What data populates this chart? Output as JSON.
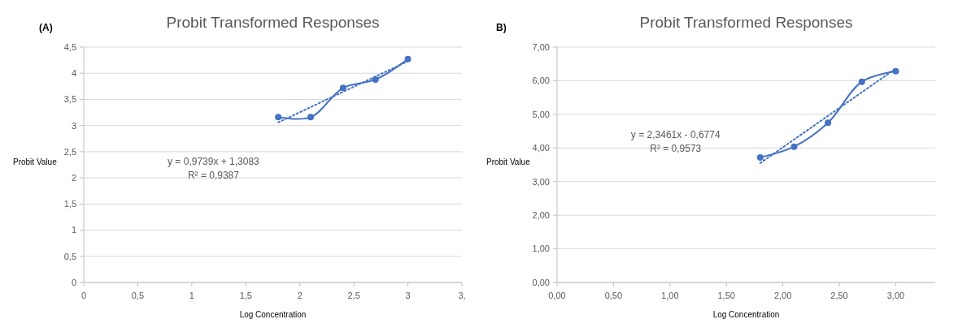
{
  "chart_data": [
    {
      "type": "line",
      "title": "Probit Transformed Responses",
      "xlabel": "Log Concentration",
      "ylabel": "Probit Value",
      "annotations": [
        "(A)",
        "y = 0,9739x + 1,3083",
        "R² = 0,9387"
      ],
      "xlim": [
        0,
        3.5
      ],
      "xticks": [
        0,
        {
          "value": 0.5,
          "label": "0,5"
        },
        1,
        {
          "value": 1.5,
          "label": "1,5"
        },
        2,
        {
          "value": 2.5,
          "label": "2,5"
        },
        3,
        {
          "value": 3.5,
          "label": "3,"
        }
      ],
      "ylim": [
        0,
        4.5
      ],
      "yticks": [
        0,
        {
          "value": 0.5,
          "label": "0,5"
        },
        1,
        {
          "value": 1.5,
          "label": "1,5"
        },
        2,
        {
          "value": 2.5,
          "label": "2,5"
        },
        3,
        {
          "value": 3.5,
          "label": "3,5"
        },
        4,
        {
          "value": 4.5,
          "label": "4,5"
        }
      ],
      "grid": "y",
      "series": [
        {
          "type": "line",
          "color": "#4472c4",
          "marker": "circle",
          "line_style": "solid",
          "x": [
            1.8,
            2.1,
            2.4,
            2.7,
            3.0
          ],
          "values": [
            3.16,
            3.16,
            3.72,
            3.88,
            4.27
          ]
        },
        {
          "type": "line",
          "color": "#4472c4",
          "marker": "none",
          "line_style": "dotted",
          "x": [
            1.8,
            3.0
          ],
          "values": [
            3.06,
            4.23
          ]
        }
      ]
    },
    {
      "type": "line",
      "title": "Probit Transformed Responses",
      "xlabel": "Log Concentration",
      "ylabel": "Probit Value",
      "annotations": [
        "B)",
        "y = 2,3461x - 0,6774",
        "R² = 0,9573"
      ],
      "xlim": [
        0,
        3.35
      ],
      "xticks": [
        {
          "value": 0,
          "label": "0,00"
        },
        {
          "value": 0.5,
          "label": "0,50"
        },
        {
          "value": 1,
          "label": "1,00"
        },
        {
          "value": 1.5,
          "label": "1,50"
        },
        {
          "value": 2,
          "label": "2,00"
        },
        {
          "value": 2.5,
          "label": "2,50"
        },
        {
          "value": 3,
          "label": "3,00"
        }
      ],
      "ylim": [
        0,
        7
      ],
      "yticks": [
        {
          "value": 0,
          "label": "0,00"
        },
        {
          "value": 1,
          "label": "1,00"
        },
        {
          "value": 2,
          "label": "2,00"
        },
        {
          "value": 3,
          "label": "3,00"
        },
        {
          "value": 4,
          "label": "4,00"
        },
        {
          "value": 5,
          "label": "5,00"
        },
        {
          "value": 6,
          "label": "6,00"
        },
        {
          "value": 7,
          "label": "7,00"
        }
      ],
      "grid": "y",
      "series": [
        {
          "type": "line",
          "color": "#4472c4",
          "marker": "circle",
          "line_style": "solid",
          "x": [
            1.8,
            2.1,
            2.4,
            2.7,
            3.0
          ],
          "values": [
            3.72,
            4.04,
            4.75,
            5.97,
            6.28
          ]
        },
        {
          "type": "line",
          "color": "#4472c4",
          "marker": "none",
          "line_style": "dotted",
          "x": [
            1.8,
            3.0
          ],
          "values": [
            3.55,
            6.36
          ]
        }
      ]
    }
  ]
}
